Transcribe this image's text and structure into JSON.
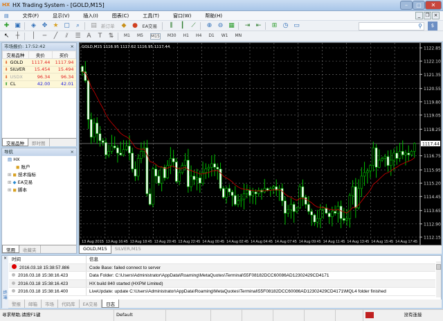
{
  "window": {
    "title": "HX Trading System - [GOLD,M15]",
    "logo": "HX"
  },
  "menu": [
    "文件(F)",
    "显示(V)",
    "插入(I)",
    "图表(C)",
    "工具(T)",
    "窗口(W)",
    "帮助(H)"
  ],
  "toolbar": {
    "new_order": "新订单",
    "ea_trade": "EA交易",
    "timeframes": [
      "M1",
      "M5",
      "M15",
      "M30",
      "H1",
      "H4",
      "D1",
      "W1",
      "MN"
    ],
    "active_timeframe": "M15"
  },
  "market_watch": {
    "title": "市场报价: 17:52:42",
    "columns": [
      "交易品种",
      "卖价",
      "买价"
    ],
    "rows": [
      {
        "symbol": "GOLD",
        "bid": "1117.44",
        "ask": "1117.94",
        "dir": "down",
        "color": "#e02020"
      },
      {
        "symbol": "SILVER",
        "bid": "15.454",
        "ask": "15.494",
        "dir": "down",
        "color": "#e02020"
      },
      {
        "symbol": "USDX",
        "bid": "96.34",
        "ask": "96.34",
        "dir": "down",
        "color": "#e02020",
        "dim": true
      },
      {
        "symbol": "CL",
        "bid": "42.00",
        "ask": "42.01",
        "dir": "up",
        "color": "#2020e0"
      }
    ],
    "tabs": [
      "交易品种",
      "即时图"
    ]
  },
  "navigator": {
    "title": "导航",
    "root": "HX",
    "items": [
      "账户",
      "技术指标",
      "EA交易",
      "脚本"
    ],
    "tabs": [
      "常用",
      "收藏夹"
    ]
  },
  "chart": {
    "header": "GOLD,M15  1116.95 1117.62 1116.95 1117.44",
    "current_price": "1117.44",
    "y_labels": [
      "1122.85",
      "1122.10",
      "1121.35",
      "1120.55",
      "1119.80",
      "1119.05",
      "1118.25",
      "1116.75",
      "1115.95",
      "1115.20",
      "1114.45",
      "1113.65",
      "1112.90",
      "1112.15"
    ],
    "ylim": [
      1112.15,
      1122.85
    ],
    "x_labels": [
      "13 Aug 2015",
      "13 Aug 16:45",
      "13 Aug 18:45",
      "13 Aug 20:45",
      "13 Aug 22:45",
      "14 Aug 00:45",
      "14 Aug 02:45",
      "14 Aug 04:45",
      "14 Aug 07:45",
      "14 Aug 09:45",
      "14 Aug 11:45",
      "14 Aug 13:45",
      "14 Aug 15:45",
      "14 Aug 17:45"
    ],
    "closes": [
      1121.5,
      1121.0,
      1118.8,
      1117.8,
      1118.6,
      1118.0,
      1117.6,
      1117.5,
      1116.8,
      1117.0,
      1117.3,
      1117.2,
      1116.9,
      1116.8,
      1117.1,
      1117.3,
      1116.9,
      1116.0,
      1115.6,
      1116.6,
      1117.0,
      1117.2,
      1114.6,
      1114.0,
      1116.0,
      1115.6,
      1115.2,
      1116.1,
      1115.5,
      1116.2,
      1116.6,
      1116.4,
      1115.3,
      1115.8,
      1116.2,
      1116.5,
      1115.0,
      1115.6,
      1115.4,
      1115.5,
      1115.2,
      1115.8,
      1116.0,
      1116.1,
      1116.3,
      1116.1,
      1116.0,
      1114.9,
      1114.4,
      1114.9,
      1114.7,
      1114.5,
      1114.0,
      1114.2,
      1114.3,
      1114.6,
      1114.8,
      1114.5,
      1114.7,
      1114.6,
      1114.8,
      1114.7,
      1114.9,
      1114.8,
      1114.9,
      1115.0,
      1114.8,
      1114.9,
      1114.2,
      1113.5,
      1113.7,
      1114.0,
      1113.6,
      1113.8,
      1115.0,
      1114.4,
      1114.0,
      1113.6,
      1113.4,
      1113.0,
      1113.2,
      1113.7,
      1113.8,
      1113.5,
      1113.3,
      1113.6,
      1113.5,
      1113.9,
      1113.2,
      1113.1,
      1113.2,
      1114.5,
      1115.0,
      1113.8,
      1114.9,
      1115.6,
      1115.8,
      1115.9,
      1116.2,
      1117.2,
      1116.1,
      1116.5,
      1116.6,
      1116.7,
      1116.2,
      1116.5,
      1116.9,
      1116.6,
      1117.0,
      1116.8,
      1116.9,
      1116.8,
      1117.0,
      1117.44
    ],
    "colors": {
      "bull": "#000000",
      "bear": "#ffffff",
      "wick": "#00c000",
      "ma": "#c00000",
      "grid": "#7a7a7a"
    },
    "tabs": [
      "GOLD,M15",
      "SILVER,M15"
    ]
  },
  "terminal": {
    "columns": [
      "时间",
      "信息"
    ],
    "rows": [
      {
        "time": "2016.03.18 15:38:57.886",
        "msg": "Code Base: failed connect to server",
        "level": "error"
      },
      {
        "time": "2016.03.18 15:38:16.423",
        "msg": "Data Folder: C:\\Users\\Administrator\\AppData\\Roaming\\MetaQuotes\\Terminal\\55F08182DCC60086AD12302429CD4171",
        "level": "info"
      },
      {
        "time": "2016.03.18 15:38:16.423",
        "msg": "HX build 840 started (HXPM Limited)",
        "level": "info"
      },
      {
        "time": "2016.03.18 15:38:16.400",
        "msg": "LiveUpdate: update C:\\Users\\Administrator\\AppData\\Roaming\\MetaQuotes\\Terminal\\55F08182DCC60086AD12302429CD4171\\MQL4 folder finished",
        "level": "info"
      }
    ],
    "tabs": [
      "警报",
      "邮箱",
      "市场",
      "代码库",
      "EA交易",
      "日志"
    ],
    "active_tab": "日志",
    "side_label": "终端"
  },
  "status": {
    "help": "寻求帮助,请按F1键",
    "profile": "Default",
    "connection": "没有连接"
  }
}
